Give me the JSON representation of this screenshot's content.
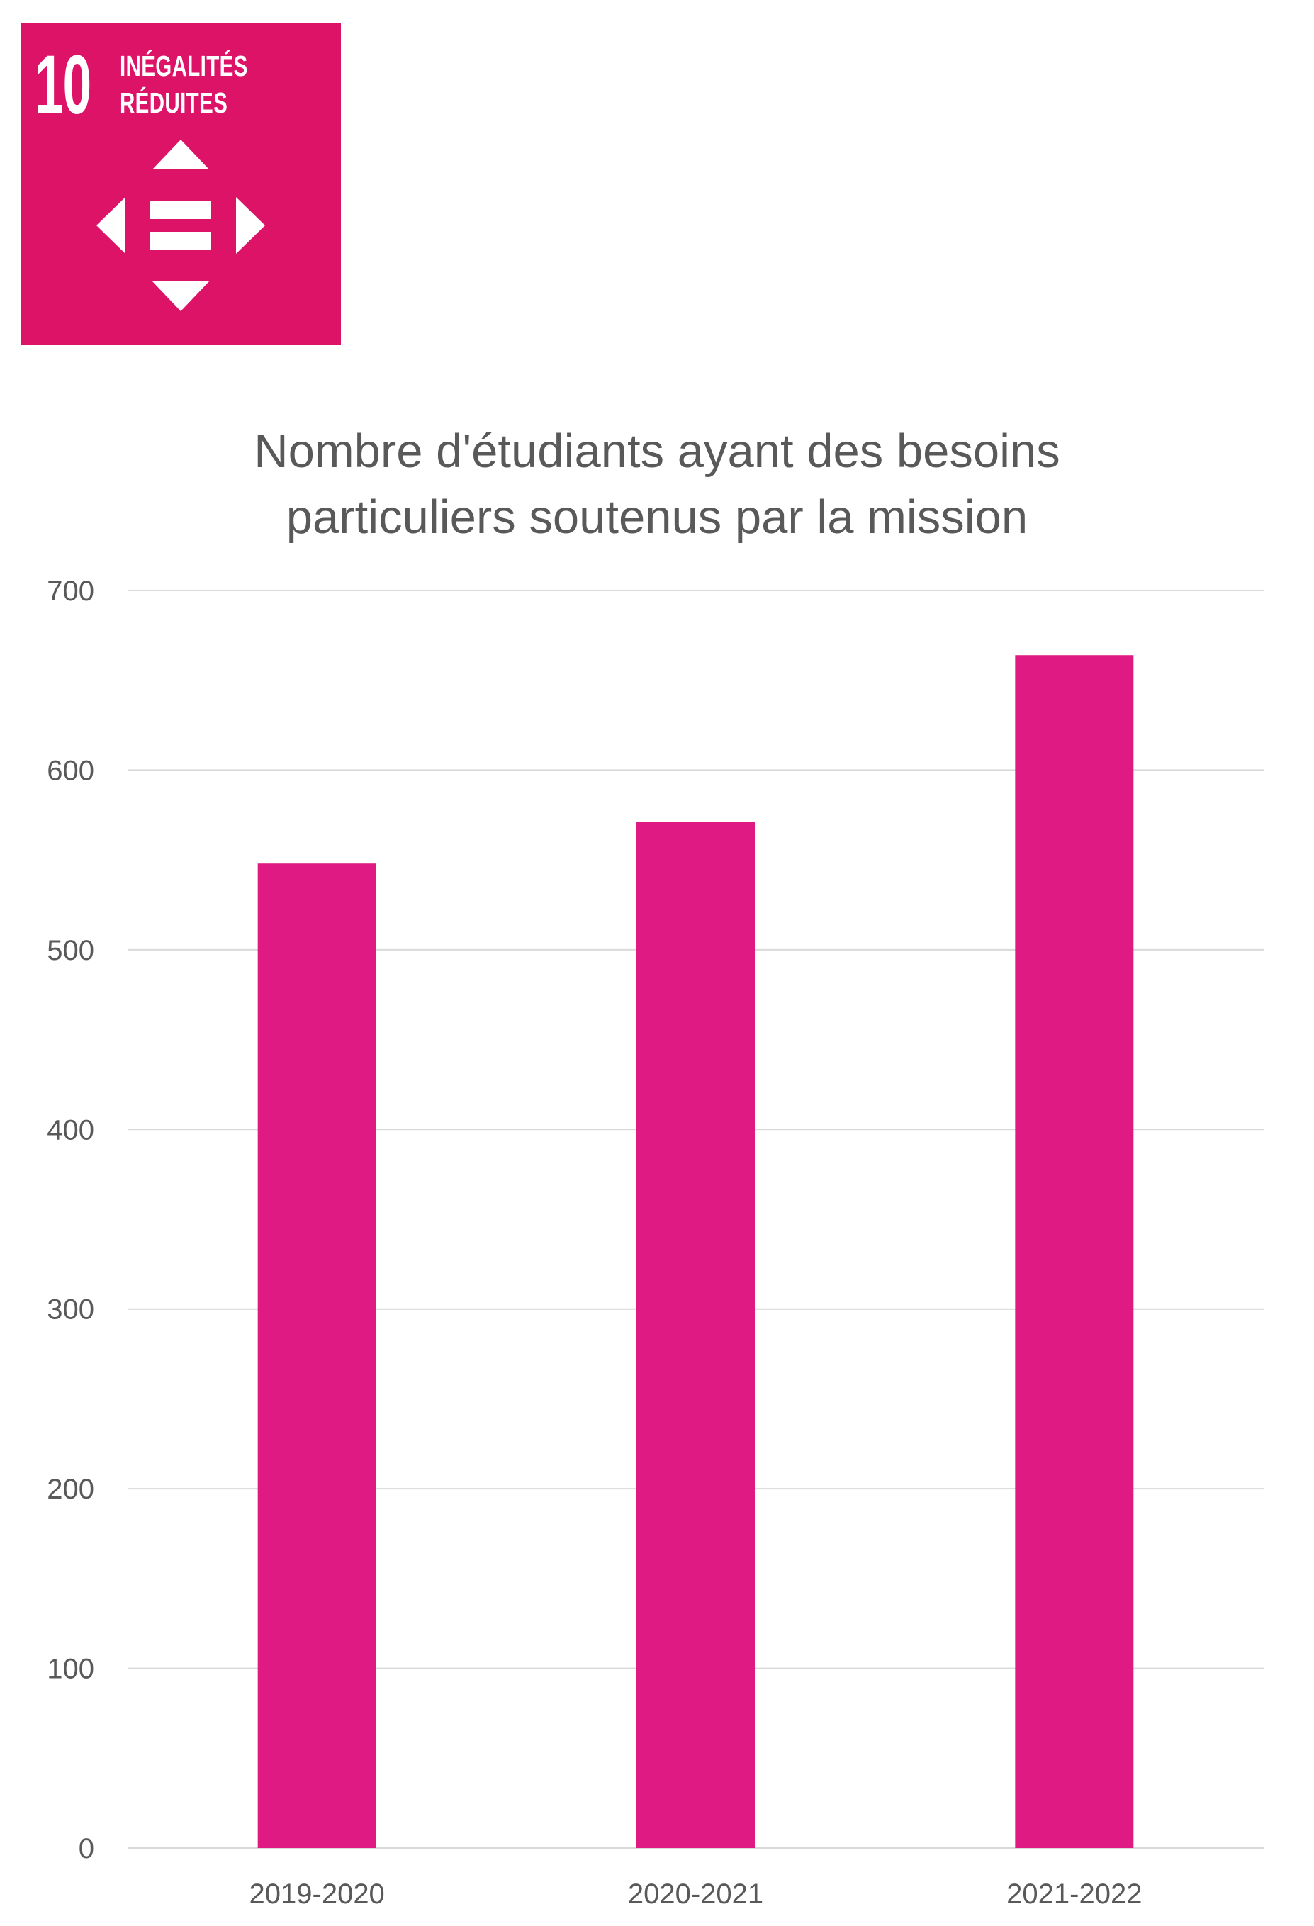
{
  "badge": {
    "number": "10",
    "label_line1": "INÉGALITÉS",
    "label_line2": "RÉDUITES",
    "icon": "reduced-inequalities-icon",
    "color": "#DD1367"
  },
  "chart_data": {
    "type": "bar",
    "title": [
      "Nombre d'étudiants ayant des besoins",
      "particuliers soutenus par la mission"
    ],
    "categories": [
      "2019-2020",
      "2020-2021",
      "2021-2022"
    ],
    "values": [
      548,
      571,
      664
    ],
    "ylim": [
      0,
      700
    ],
    "yticks": [
      0,
      100,
      200,
      300,
      400,
      500,
      600,
      700
    ],
    "grid": true,
    "bar_color": "#E01A83",
    "grid_color": "#D9D9D9",
    "text_color": "#595959"
  }
}
